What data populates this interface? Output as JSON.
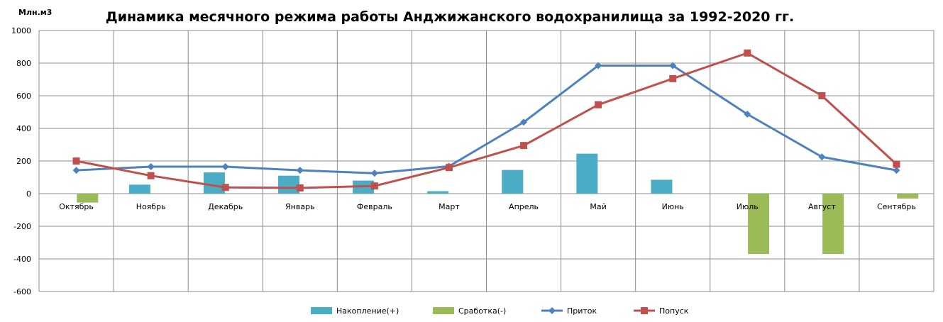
{
  "chart_data": {
    "type": "bar+line",
    "title": "Динамика месячного режима работы Анджижанского водохранилища за 1992-2020 гг.",
    "ylabel": "Млн.м3",
    "ylim": [
      -600,
      1000
    ],
    "yticks": [
      1000,
      800,
      600,
      400,
      200,
      0,
      -200,
      -400,
      -600
    ],
    "grid": true,
    "legend_position": "bottom",
    "categories": [
      "Октябрь",
      "Ноябрь",
      "Декабрь",
      "Январь",
      "Февраль",
      "Март",
      "Апрель",
      "Май",
      "Июнь",
      "Июль",
      "Август",
      "Сентябрь"
    ],
    "series": [
      {
        "name": "Накопление(+)",
        "type": "bar",
        "color": "#4bacc6",
        "values": [
          null,
          55,
          130,
          110,
          80,
          15,
          145,
          245,
          85,
          null,
          null,
          null
        ]
      },
      {
        "name": "Сработка(-)",
        "type": "bar",
        "color": "#9bbb59",
        "values": [
          -55,
          null,
          null,
          null,
          null,
          null,
          null,
          null,
          null,
          -370,
          -370,
          -30
        ]
      },
      {
        "name": "Приток",
        "type": "line",
        "marker": "diamond",
        "color": "#4f81bd",
        "values": [
          143,
          165,
          165,
          143,
          125,
          168,
          438,
          785,
          785,
          487,
          225,
          143
        ]
      },
      {
        "name": "Попуск",
        "type": "line",
        "marker": "square",
        "color": "#c0504d",
        "values": [
          200,
          110,
          38,
          35,
          47,
          160,
          295,
          545,
          705,
          862,
          600,
          180
        ]
      }
    ]
  }
}
